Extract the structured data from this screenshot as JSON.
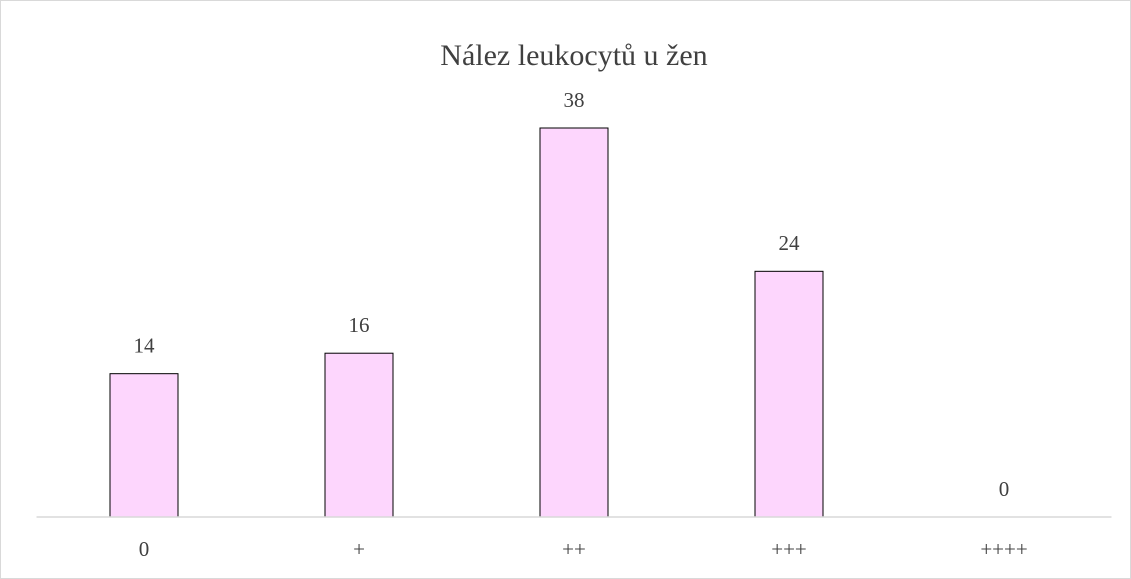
{
  "chart_data": {
    "type": "bar",
    "title": "Nález leukocytů u žen",
    "categories": [
      "0",
      "+",
      "++",
      "+++",
      "++++"
    ],
    "values": [
      14,
      16,
      38,
      24,
      0
    ],
    "color": "#fdd6fd"
  }
}
